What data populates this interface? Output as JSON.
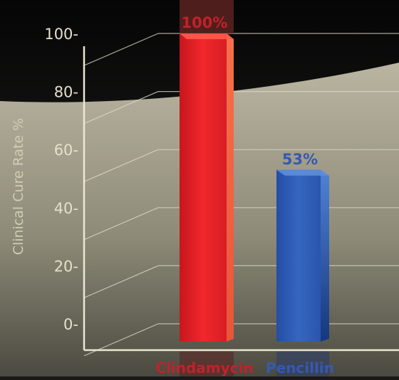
{
  "chart_data": {
    "type": "bar",
    "ylabel": "Clinical Cure Rate %",
    "ylim": [
      0,
      100
    ],
    "yticks": [
      "0-",
      "20-",
      "40-",
      "60-",
      "80-",
      "100-"
    ],
    "ytick_values": [
      0,
      20,
      40,
      60,
      80,
      100
    ],
    "categories": [
      "Clindamycin",
      "Pencillin"
    ],
    "values": [
      100,
      53
    ],
    "value_labels": [
      "100%",
      "53%"
    ],
    "grid": true,
    "colors": {
      "Clindamycin": "#e5262b",
      "Pencillin": "#2f5cb4",
      "Clindamycin_label": "#c3212b",
      "Pencillin_label": "#3559b2",
      "background_dark": "#1a1918",
      "background_light": "#a9a590"
    }
  }
}
